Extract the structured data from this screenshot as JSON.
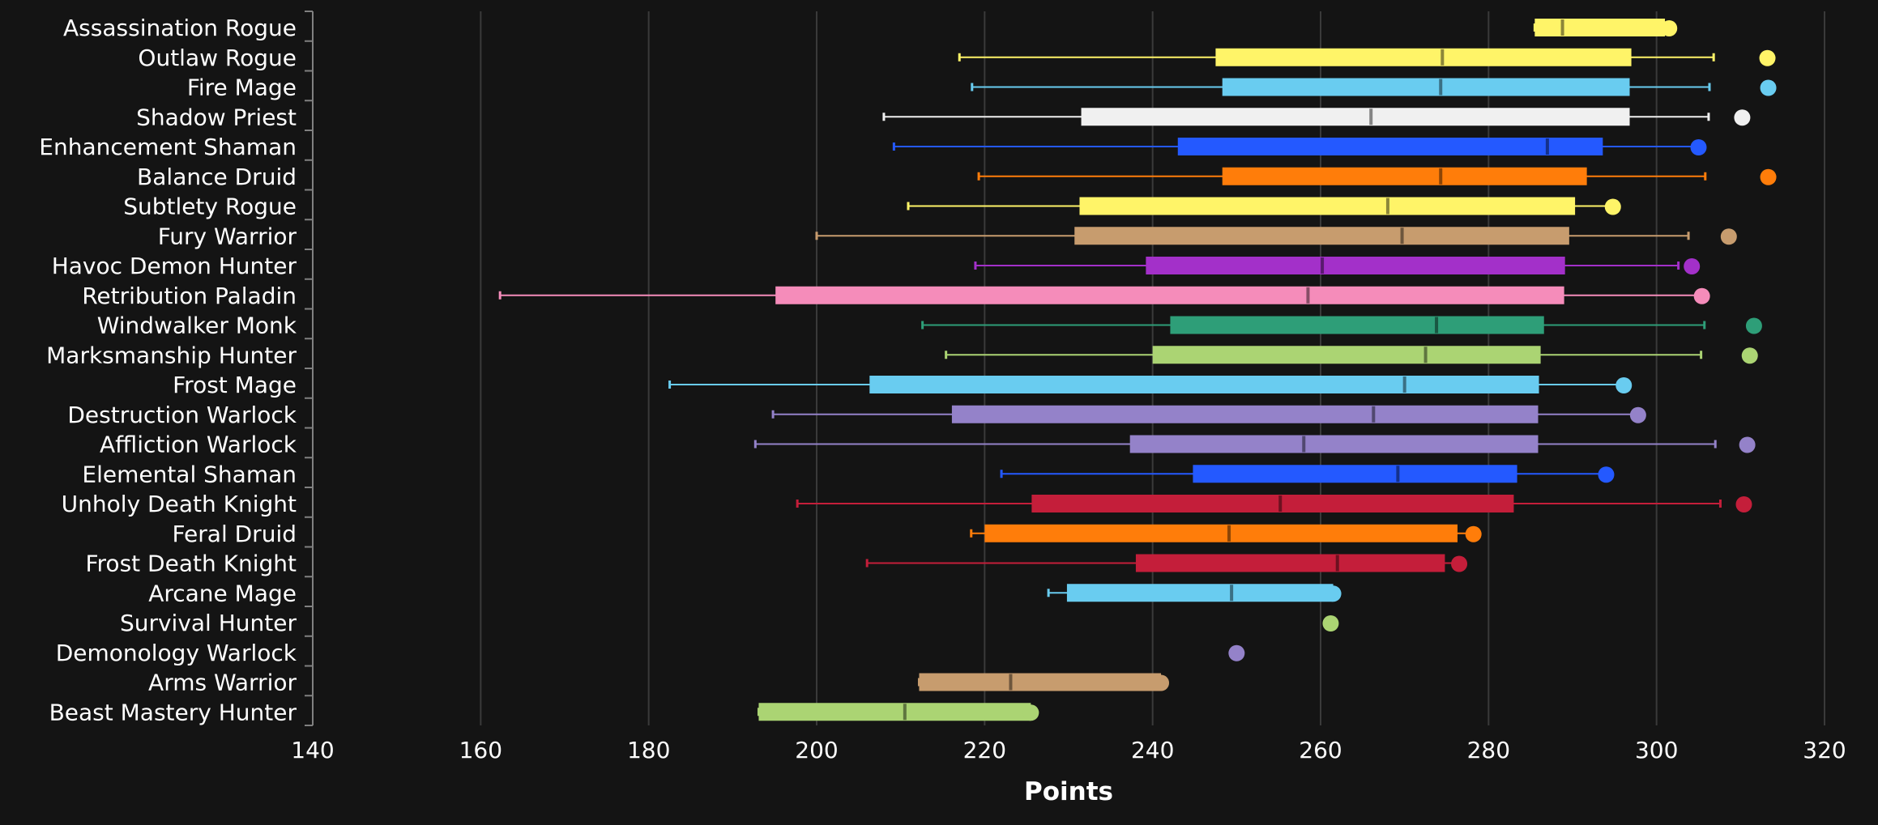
{
  "chart_data": {
    "type": "boxplot",
    "orientation": "horizontal",
    "xlabel": "Points",
    "xlim": [
      140,
      320
    ],
    "xticks": [
      140,
      160,
      180,
      200,
      220,
      240,
      260,
      280,
      300,
      320
    ],
    "grid": "vertical",
    "legend": "none",
    "series": [
      {
        "name": "Assassination Rogue",
        "color": "#FFF468",
        "min": 285.5,
        "q1": 285.5,
        "median": 288.8,
        "q3": 301.0,
        "max": 301.5,
        "outlier": 301.5
      },
      {
        "name": "Outlaw Rogue",
        "color": "#FFF468",
        "min": 217.0,
        "q1": 247.5,
        "median": 274.5,
        "q3": 297.0,
        "max": 306.8,
        "outlier": 313.2
      },
      {
        "name": "Fire Mage",
        "color": "#69CCF0",
        "min": 218.5,
        "q1": 248.3,
        "median": 274.3,
        "q3": 296.8,
        "max": 306.3,
        "outlier": 313.3
      },
      {
        "name": "Shadow Priest",
        "color": "#F0F0F0",
        "min": 208.0,
        "q1": 231.5,
        "median": 266.0,
        "q3": 296.8,
        "max": 306.2,
        "outlier": 310.2
      },
      {
        "name": "Enhancement Shaman",
        "color": "#2459FF",
        "min": 209.2,
        "q1": 243.0,
        "median": 287.0,
        "q3": 293.6,
        "max": 305.0,
        "outlier": 305.0
      },
      {
        "name": "Balance Druid",
        "color": "#FF7D0A",
        "min": 219.3,
        "q1": 248.3,
        "median": 274.3,
        "q3": 291.7,
        "max": 305.8,
        "outlier": 313.3
      },
      {
        "name": "Subtlety Rogue",
        "color": "#FFF468",
        "min": 210.9,
        "q1": 231.3,
        "median": 268.0,
        "q3": 290.3,
        "max": 294.8,
        "outlier": 294.8
      },
      {
        "name": "Fury Warrior",
        "color": "#C79C6E",
        "min": 200.0,
        "q1": 230.7,
        "median": 269.7,
        "q3": 289.6,
        "max": 303.8,
        "outlier": 308.6
      },
      {
        "name": "Havoc Demon Hunter",
        "color": "#A330C9",
        "min": 218.9,
        "q1": 239.2,
        "median": 260.2,
        "q3": 289.1,
        "max": 302.6,
        "outlier": 304.2
      },
      {
        "name": "Retribution Paladin",
        "color": "#F58CBA",
        "min": 162.3,
        "q1": 195.1,
        "median": 258.5,
        "q3": 289.0,
        "max": 305.4,
        "outlier": 305.4
      },
      {
        "name": "Windwalker Monk",
        "color": "#2E9E78",
        "min": 212.6,
        "q1": 242.1,
        "median": 273.8,
        "q3": 286.6,
        "max": 305.7,
        "outlier": 311.6
      },
      {
        "name": "Marksmanship Hunter",
        "color": "#ABD473",
        "min": 215.4,
        "q1": 240.0,
        "median": 272.5,
        "q3": 286.2,
        "max": 305.3,
        "outlier": 311.1
      },
      {
        "name": "Frost Mage",
        "color": "#69CCF0",
        "min": 182.5,
        "q1": 206.3,
        "median": 270.0,
        "q3": 286.0,
        "max": 296.1,
        "outlier": 296.1
      },
      {
        "name": "Destruction Warlock",
        "color": "#9482C9",
        "min": 194.8,
        "q1": 216.1,
        "median": 266.3,
        "q3": 285.9,
        "max": 297.8,
        "outlier": 297.8
      },
      {
        "name": "Affliction Warlock",
        "color": "#9482C9",
        "min": 192.7,
        "q1": 237.3,
        "median": 258.0,
        "q3": 285.9,
        "max": 307.0,
        "outlier": 310.8
      },
      {
        "name": "Elemental Shaman",
        "color": "#2459FF",
        "min": 222.0,
        "q1": 244.8,
        "median": 269.2,
        "q3": 283.4,
        "max": 294.0,
        "outlier": 294.0
      },
      {
        "name": "Unholy Death Knight",
        "color": "#C41E3A",
        "min": 197.7,
        "q1": 225.6,
        "median": 255.2,
        "q3": 283.0,
        "max": 307.6,
        "outlier": 310.4
      },
      {
        "name": "Feral Druid",
        "color": "#FF7D0A",
        "min": 218.4,
        "q1": 220.0,
        "median": 249.1,
        "q3": 276.3,
        "max": 278.2,
        "outlier": 278.2
      },
      {
        "name": "Frost Death Knight",
        "color": "#C41E3A",
        "min": 206.0,
        "q1": 238.0,
        "median": 262.0,
        "q3": 274.8,
        "max": 276.5,
        "outlier": 276.5
      },
      {
        "name": "Arcane Mage",
        "color": "#69CCF0",
        "min": 227.6,
        "q1": 229.8,
        "median": 249.4,
        "q3": 261.5,
        "max": 261.5,
        "outlier": 261.5
      },
      {
        "name": "Survival Hunter",
        "color": "#ABD473",
        "min": 261.2,
        "q1": 261.2,
        "median": 261.2,
        "q3": 261.2,
        "max": 261.2,
        "outlier": 261.2
      },
      {
        "name": "Demonology Warlock",
        "color": "#9482C9",
        "min": 250.0,
        "q1": 250.0,
        "median": 250.0,
        "q3": 250.0,
        "max": 250.0,
        "outlier": 250.0
      },
      {
        "name": "Arms Warrior",
        "color": "#C79C6E",
        "min": 212.2,
        "q1": 212.2,
        "median": 223.1,
        "q3": 241.0,
        "max": 241.0,
        "outlier": 241.0
      },
      {
        "name": "Beast Mastery Hunter",
        "color": "#ABD473",
        "min": 193.1,
        "q1": 193.1,
        "median": 210.5,
        "q3": 225.5,
        "max": 225.5,
        "outlier": 225.5
      }
    ]
  }
}
